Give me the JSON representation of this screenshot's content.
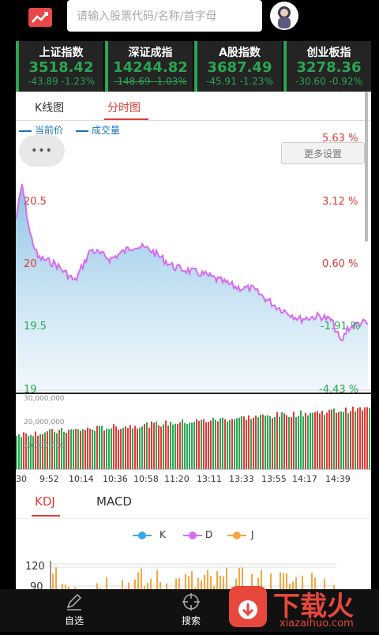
{
  "search": {
    "placeholder": "请输入股票代码/名称/首字母"
  },
  "indices": [
    {
      "name": "上证指数",
      "value": "3518.42",
      "change": "-43.89 -1.23%"
    },
    {
      "name": "深证成指",
      "value": "14244.82",
      "change": "-148.69 -1.03%"
    },
    {
      "name": "A股指数",
      "value": "3687.49",
      "change": "-45.91 -1.23%"
    },
    {
      "name": "创业板指",
      "value": "3278.36",
      "change": "-30.60 -0.92%"
    }
  ],
  "chart_tabs": {
    "kline": "K线图",
    "timeshare": "分时图"
  },
  "legend": {
    "price": "当前价",
    "volume": "成交量"
  },
  "more_settings": "更多设置",
  "float_btn": "•••",
  "price_axis": [
    "20.5",
    "20",
    "19.5",
    "19"
  ],
  "pct_axis": [
    "5.63 %",
    "3.12 %",
    "0.60 %",
    "-1.91 %",
    "-4.43 %"
  ],
  "vol_axis": [
    "30,000,000",
    "20,000,000",
    "10,000,000"
  ],
  "time_axis": [
    "30",
    "9:52",
    "10:14",
    "10:36",
    "10:58",
    "11:20",
    "13:11",
    "13:33",
    "13:55",
    "14:17",
    "14:39"
  ],
  "indicator_tabs": {
    "kdj": "KDJ",
    "macd": "MACD"
  },
  "kdj_legend": [
    "K",
    "D",
    "J"
  ],
  "kdj_axis": [
    "120",
    "90"
  ],
  "nav": {
    "watchlist": "自选",
    "search": "搜索"
  },
  "watermark": {
    "brand": "下载火",
    "url": "xiazaihuo.com"
  },
  "colors": {
    "up": "#e53935",
    "down": "#2aa652",
    "accent": "#e84848",
    "line": "#d66cf0",
    "k": "#3aa8e8",
    "d": "#d66cf0",
    "j": "#f5a742"
  }
}
